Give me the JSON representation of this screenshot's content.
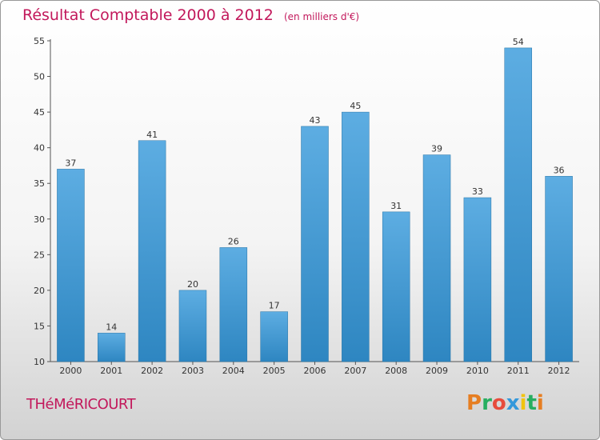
{
  "chart_data": {
    "type": "bar",
    "title": "Résultat Comptable 2000 à 2012",
    "unit_label": "(en milliers d'€)",
    "categories": [
      "2000",
      "2001",
      "2002",
      "2003",
      "2004",
      "2005",
      "2006",
      "2007",
      "2008",
      "2009",
      "2010",
      "2011",
      "2012"
    ],
    "values": [
      37,
      14,
      41,
      20,
      26,
      17,
      43,
      45,
      31,
      39,
      33,
      54,
      36
    ],
    "ylim": [
      10,
      55
    ],
    "yticks": [
      10,
      15,
      20,
      25,
      30,
      35,
      40,
      45,
      50,
      55
    ],
    "xlabel": "",
    "ylabel": "",
    "grid": false,
    "colors": {
      "bar_light": "#5dade2",
      "bar_dark": "#2e86c1",
      "title": "#c2185b"
    }
  },
  "footer": {
    "commune": "THéMéRICOURT",
    "logo": {
      "letters": [
        {
          "char": "P",
          "color": "#e67e22"
        },
        {
          "char": "r",
          "color": "#27ae60"
        },
        {
          "char": "o",
          "color": "#e74c3c"
        },
        {
          "char": "x",
          "color": "#3498db"
        },
        {
          "char": "i",
          "color": "#f1c40f"
        },
        {
          "char": "t",
          "color": "#27ae60"
        },
        {
          "char": "i",
          "color": "#e67e22"
        }
      ]
    }
  }
}
